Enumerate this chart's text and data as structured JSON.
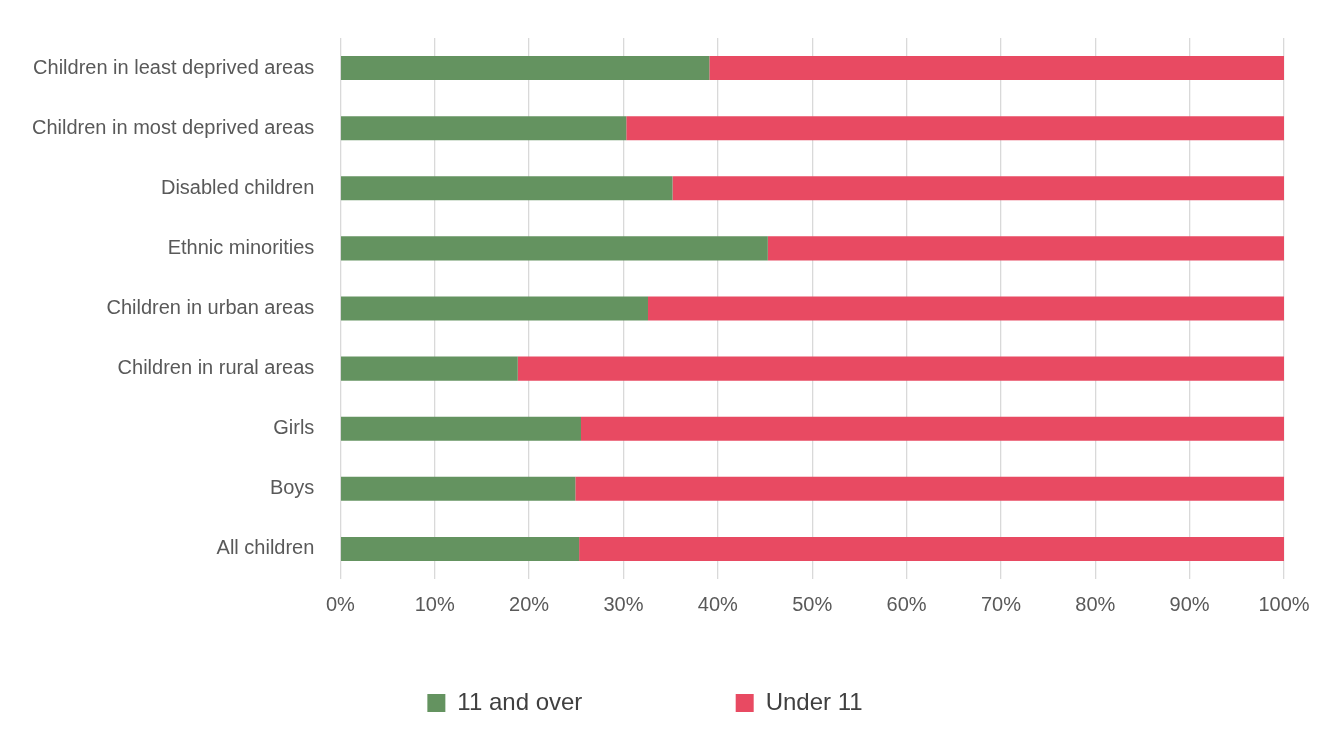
{
  "chart_data": {
    "type": "bar",
    "orientation": "horizontal",
    "stacked": true,
    "categories": [
      "Children in least deprived areas",
      "Children in most deprived areas",
      "Disabled children",
      "Ethnic minorities",
      "Children in urban areas",
      "Children in rural areas",
      "Girls",
      "Boys",
      "All children"
    ],
    "series": [
      {
        "name": "11 and over",
        "color": "#649360",
        "values": [
          39.1,
          30.3,
          35.2,
          45.3,
          32.6,
          18.8,
          25.5,
          24.9,
          25.3
        ]
      },
      {
        "name": "Under 11",
        "color": "#e84a62",
        "values": [
          60.9,
          69.7,
          64.8,
          54.7,
          67.4,
          81.2,
          74.5,
          75.1,
          74.7
        ]
      }
    ],
    "xlim": [
      0,
      100
    ],
    "xticks": [
      {
        "value": 0,
        "label": "0%"
      },
      {
        "value": 10,
        "label": "10%"
      },
      {
        "value": 20,
        "label": "20%"
      },
      {
        "value": 30,
        "label": "30%"
      },
      {
        "value": 40,
        "label": "40%"
      },
      {
        "value": 50,
        "label": "50%"
      },
      {
        "value": 60,
        "label": "60%"
      },
      {
        "value": 70,
        "label": "70%"
      },
      {
        "value": 80,
        "label": "80%"
      },
      {
        "value": 90,
        "label": "90%"
      },
      {
        "value": 100,
        "label": "100%"
      }
    ],
    "grid": "x",
    "legend": "bottom"
  }
}
